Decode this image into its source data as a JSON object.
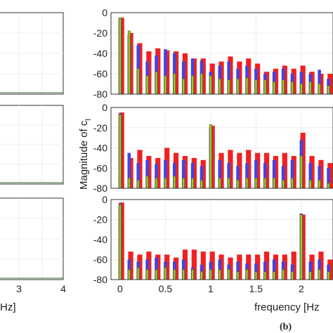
{
  "figure": {
    "ylabel": "Magnitude of c",
    "ylabel_subscript": "l",
    "xlabel_right": "frequency [Hz",
    "xlabel_left": "Hz]",
    "caption": "(b)"
  },
  "colors": {
    "red": "#ee2222",
    "blue": "#4444dd",
    "green": "#99cc33",
    "olive": "#6b6b00"
  },
  "chart_data": [
    {
      "type": "bar",
      "panel": "top",
      "xlim": [
        -0.1,
        2.35
      ],
      "ylim": [
        -80,
        0
      ],
      "xticks": [
        0,
        0.5,
        1,
        1.5,
        2
      ],
      "yticks": [
        0,
        -20,
        -40,
        -60,
        -80
      ],
      "ytick_labels": [
        "0",
        "-20",
        "-40",
        "-60",
        "-80"
      ],
      "grid": true,
      "x": [
        0,
        0.1,
        0.2,
        0.3,
        0.4,
        0.5,
        0.6,
        0.7,
        0.8,
        0.9,
        1.0,
        1.1,
        1.2,
        1.3,
        1.4,
        1.5,
        1.6,
        1.7,
        1.8,
        1.9,
        2.0,
        2.1,
        2.2,
        2.3
      ],
      "series": [
        {
          "color": "red",
          "values": [
            -5,
            -20,
            -30,
            -38,
            -35,
            -37,
            -38,
            -40,
            -45,
            -45,
            -50,
            -48,
            -43,
            -48,
            -45,
            -50,
            -58,
            -55,
            -52,
            -55,
            -52,
            -58,
            -60,
            -60
          ]
        },
        {
          "color": "blue",
          "values": [
            -6,
            -22,
            -32,
            -48,
            -42,
            -36,
            -40,
            -48,
            -45,
            -47,
            -58,
            -52,
            -48,
            -55,
            -52,
            -55,
            -60,
            -58,
            -55,
            -60,
            -58,
            -60,
            -56,
            -65
          ]
        },
        {
          "color": "green",
          "values": [
            -5,
            -18,
            -55,
            -62,
            -58,
            -62,
            -60,
            -65,
            -62,
            -60,
            -62,
            -65,
            -66,
            -65,
            -64,
            -66,
            -66,
            -68,
            -66,
            -68,
            -70,
            -68,
            -70,
            -72
          ]
        }
      ]
    },
    {
      "type": "bar",
      "panel": "middle",
      "xlim": [
        -0.1,
        2.35
      ],
      "ylim": [
        -80,
        0
      ],
      "xticks": [
        0,
        0.5,
        1,
        1.5,
        2
      ],
      "yticks": [
        0,
        -20,
        -40,
        -60,
        -80
      ],
      "ytick_labels": [
        "0",
        "-20",
        "-40",
        "-60",
        "-80"
      ],
      "grid": true,
      "x": [
        0,
        0.1,
        0.2,
        0.3,
        0.4,
        0.5,
        0.6,
        0.7,
        0.8,
        0.9,
        1.0,
        1.1,
        1.2,
        1.3,
        1.4,
        1.5,
        1.6,
        1.7,
        1.8,
        1.9,
        2.0,
        2.1,
        2.2,
        2.3
      ],
      "series": [
        {
          "color": "red",
          "values": [
            -5,
            -50,
            -42,
            -48,
            -50,
            -40,
            -45,
            -48,
            -50,
            -52,
            -18,
            -45,
            -42,
            -45,
            -42,
            -45,
            -45,
            -48,
            -45,
            -48,
            -25,
            -48,
            -52,
            -55
          ]
        },
        {
          "color": "blue",
          "values": [
            -6,
            -45,
            -55,
            -52,
            -56,
            -52,
            -55,
            -52,
            -55,
            -58,
            -20,
            -52,
            -55,
            -58,
            -55,
            -52,
            -55,
            -52,
            -58,
            -52,
            -32,
            -55,
            -58,
            -60
          ]
        },
        {
          "color": "green",
          "values": [
            -7,
            -70,
            -72,
            -68,
            -70,
            -70,
            -68,
            -70,
            -70,
            -72,
            -17,
            -70,
            -70,
            -72,
            -70,
            -70,
            -70,
            -70,
            -72,
            -70,
            -48,
            -72,
            -72,
            -75
          ]
        }
      ]
    },
    {
      "type": "bar",
      "panel": "bottom",
      "xlim": [
        -0.1,
        2.35
      ],
      "ylim": [
        -80,
        0
      ],
      "xticks": [
        0,
        0.5,
        1,
        1.5,
        2
      ],
      "xtick_labels": [
        "0",
        "0.5",
        "1",
        "1.5",
        "2"
      ],
      "yticks": [
        0,
        -20,
        -40,
        -60,
        -80
      ],
      "ytick_labels": [
        "0",
        "-20",
        "-40",
        "-60",
        "-80"
      ],
      "grid": true,
      "x": [
        0,
        0.1,
        0.2,
        0.3,
        0.4,
        0.5,
        0.6,
        0.7,
        0.8,
        0.9,
        1.0,
        1.1,
        1.2,
        1.3,
        1.4,
        1.5,
        1.6,
        1.7,
        1.8,
        1.9,
        2.0,
        2.1,
        2.2,
        2.3
      ],
      "series": [
        {
          "color": "red",
          "values": [
            -3,
            -52,
            -55,
            -52,
            -55,
            -55,
            -58,
            -50,
            -50,
            -52,
            -52,
            -55,
            -58,
            -55,
            -55,
            -55,
            -52,
            -55,
            -55,
            -52,
            -15,
            -55,
            -52,
            -60
          ]
        },
        {
          "color": "blue",
          "values": [
            -4,
            -60,
            -62,
            -60,
            -58,
            -62,
            -62,
            -60,
            -68,
            -65,
            -62,
            -60,
            -65,
            -62,
            -64,
            -64,
            -62,
            -60,
            -62,
            -65,
            -14,
            -62,
            -60,
            -65
          ]
        },
        {
          "color": "green",
          "values": [
            -5,
            -70,
            -68,
            -70,
            -70,
            -68,
            -70,
            -70,
            -70,
            -72,
            -70,
            -70,
            -70,
            -72,
            -70,
            -72,
            -72,
            -72,
            -70,
            -72,
            -15,
            -72,
            -70,
            -72
          ]
        }
      ]
    },
    {
      "type": "line",
      "panel": "left-cropped",
      "xticks": [
        3,
        4
      ],
      "xtick_labels": [
        "3",
        "4"
      ],
      "grid": true,
      "series": []
    }
  ]
}
